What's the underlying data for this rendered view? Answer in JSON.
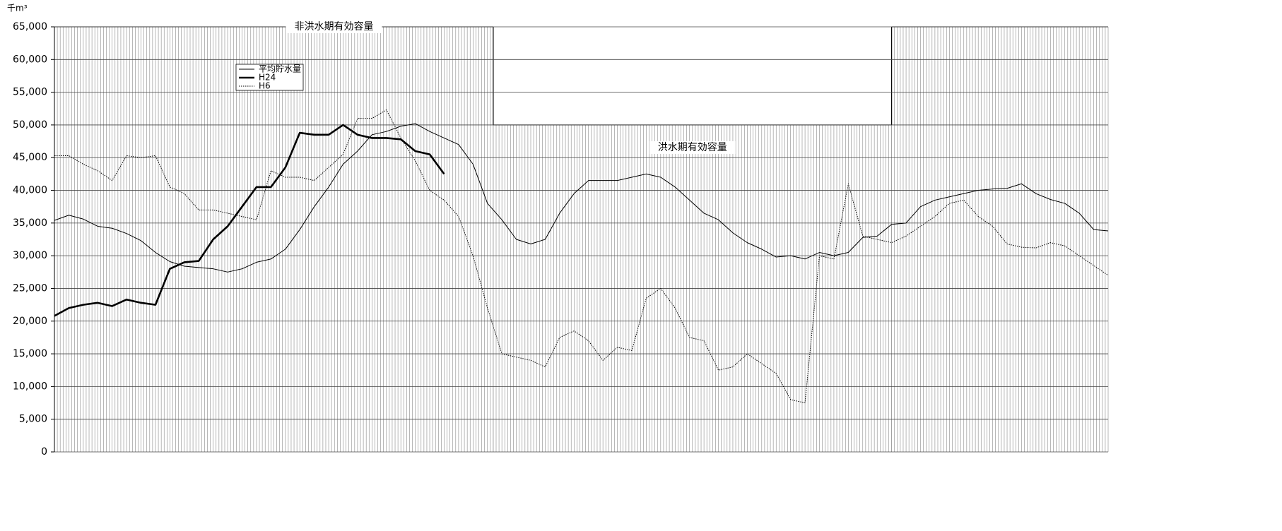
{
  "chart_data": {
    "type": "line",
    "y_unit": "千m³",
    "xlim": [
      0,
      365
    ],
    "ylim": [
      0,
      65000
    ],
    "yticks": [
      {
        "value": 0,
        "label": "0"
      },
      {
        "value": 5000,
        "label": "5,000"
      },
      {
        "value": 10000,
        "label": "10,000"
      },
      {
        "value": 15000,
        "label": "15,000"
      },
      {
        "value": 20000,
        "label": "20,000"
      },
      {
        "value": 25000,
        "label": "25,000"
      },
      {
        "value": 30000,
        "label": "30,000"
      },
      {
        "value": 35000,
        "label": "35,000"
      },
      {
        "value": 40000,
        "label": "40,000"
      },
      {
        "value": 45000,
        "label": "45,000"
      },
      {
        "value": 50000,
        "label": "50,000"
      },
      {
        "value": 55000,
        "label": "55,000"
      },
      {
        "value": 60000,
        "label": "60,000"
      },
      {
        "value": 65000,
        "label": "65,000"
      }
    ],
    "grid": true,
    "capacity_periods": [
      {
        "label": "非洪水期有効容量",
        "from": 0,
        "to": 152,
        "value": 65000
      },
      {
        "label": "洪水期有効容量",
        "from": 152,
        "to": 290,
        "value": 50000
      },
      {
        "from": 290,
        "to": 365,
        "value": 65000
      }
    ],
    "x": [
      0,
      5,
      10,
      15,
      20,
      25,
      30,
      35,
      40,
      45,
      50,
      55,
      60,
      65,
      70,
      75,
      80,
      85,
      90,
      95,
      100,
      105,
      110,
      115,
      120,
      125,
      130,
      135,
      140,
      145,
      150,
      155,
      160,
      165,
      170,
      175,
      180,
      185,
      190,
      195,
      200,
      205,
      210,
      215,
      220,
      225,
      230,
      235,
      240,
      245,
      250,
      255,
      260,
      265,
      270,
      275,
      280,
      285,
      290,
      295,
      300,
      305,
      310,
      315,
      320,
      325,
      330,
      335,
      340,
      345,
      350,
      355,
      360,
      365
    ],
    "series": [
      {
        "name": "平均貯水量",
        "color": "#000000",
        "style": "solid",
        "values": [
          35400,
          36200,
          35600,
          34500,
          34200,
          33400,
          32300,
          30500,
          29100,
          28400,
          28200,
          28000,
          27500,
          28000,
          29000,
          29500,
          31000,
          34000,
          37500,
          40500,
          44000,
          46000,
          48500,
          49000,
          49800,
          50200,
          49000,
          48000,
          47000,
          44000,
          38000,
          35500,
          32500,
          31800,
          32500,
          36500,
          39500,
          41500,
          41500,
          41500,
          42000,
          42500,
          42000,
          40500,
          38500,
          36500,
          35500,
          33500,
          32000,
          31000,
          29800,
          30000,
          29500,
          30500,
          30000,
          30500,
          32800,
          33000,
          34800,
          35000,
          37500,
          38500,
          39000,
          39500,
          40000,
          40200,
          40300,
          41000,
          39500,
          38600,
          38000,
          36500,
          34000,
          33800
        ]
      },
      {
        "name": "H24",
        "color": "#000000",
        "style": "bold",
        "values": [
          20800,
          22000,
          22500,
          22800,
          22300,
          23300,
          22800,
          22500,
          28000,
          29000,
          29200,
          32500,
          34500,
          37500,
          40500,
          40500,
          43500,
          48800,
          48500,
          48500,
          50000,
          48500,
          48000,
          48000,
          47800,
          46000,
          45500,
          42500,
          null,
          null,
          null,
          null,
          null,
          null,
          null,
          null,
          null,
          null,
          null,
          null,
          null,
          null,
          null,
          null,
          null,
          null,
          null,
          null,
          null,
          null,
          null,
          null,
          null,
          null,
          null,
          null,
          null,
          null,
          null,
          null,
          null,
          null,
          null,
          null,
          null,
          null,
          null,
          null,
          null,
          null,
          null,
          null,
          null,
          null
        ]
      },
      {
        "name": "H6",
        "color": "#000000",
        "style": "dotted",
        "values": [
          45300,
          45300,
          44000,
          43000,
          41500,
          45300,
          45000,
          45300,
          40500,
          39500,
          37000,
          37000,
          36500,
          36000,
          35500,
          43000,
          42000,
          42000,
          41500,
          43500,
          45500,
          51000,
          51000,
          52300,
          48000,
          44500,
          40000,
          38500,
          36000,
          30000,
          22000,
          15000,
          14500,
          14000,
          13000,
          17500,
          18500,
          17000,
          14000,
          16000,
          15500,
          23500,
          25000,
          22000,
          17500,
          17000,
          12500,
          13000,
          15000,
          13500,
          12000,
          8000,
          7500,
          30000,
          29500,
          41000,
          33000,
          32500,
          32000,
          33000,
          34500,
          36000,
          38000,
          38500,
          36000,
          34500,
          31800,
          31300,
          31200,
          32000,
          31500,
          30000,
          28500,
          27000
        ]
      }
    ]
  }
}
